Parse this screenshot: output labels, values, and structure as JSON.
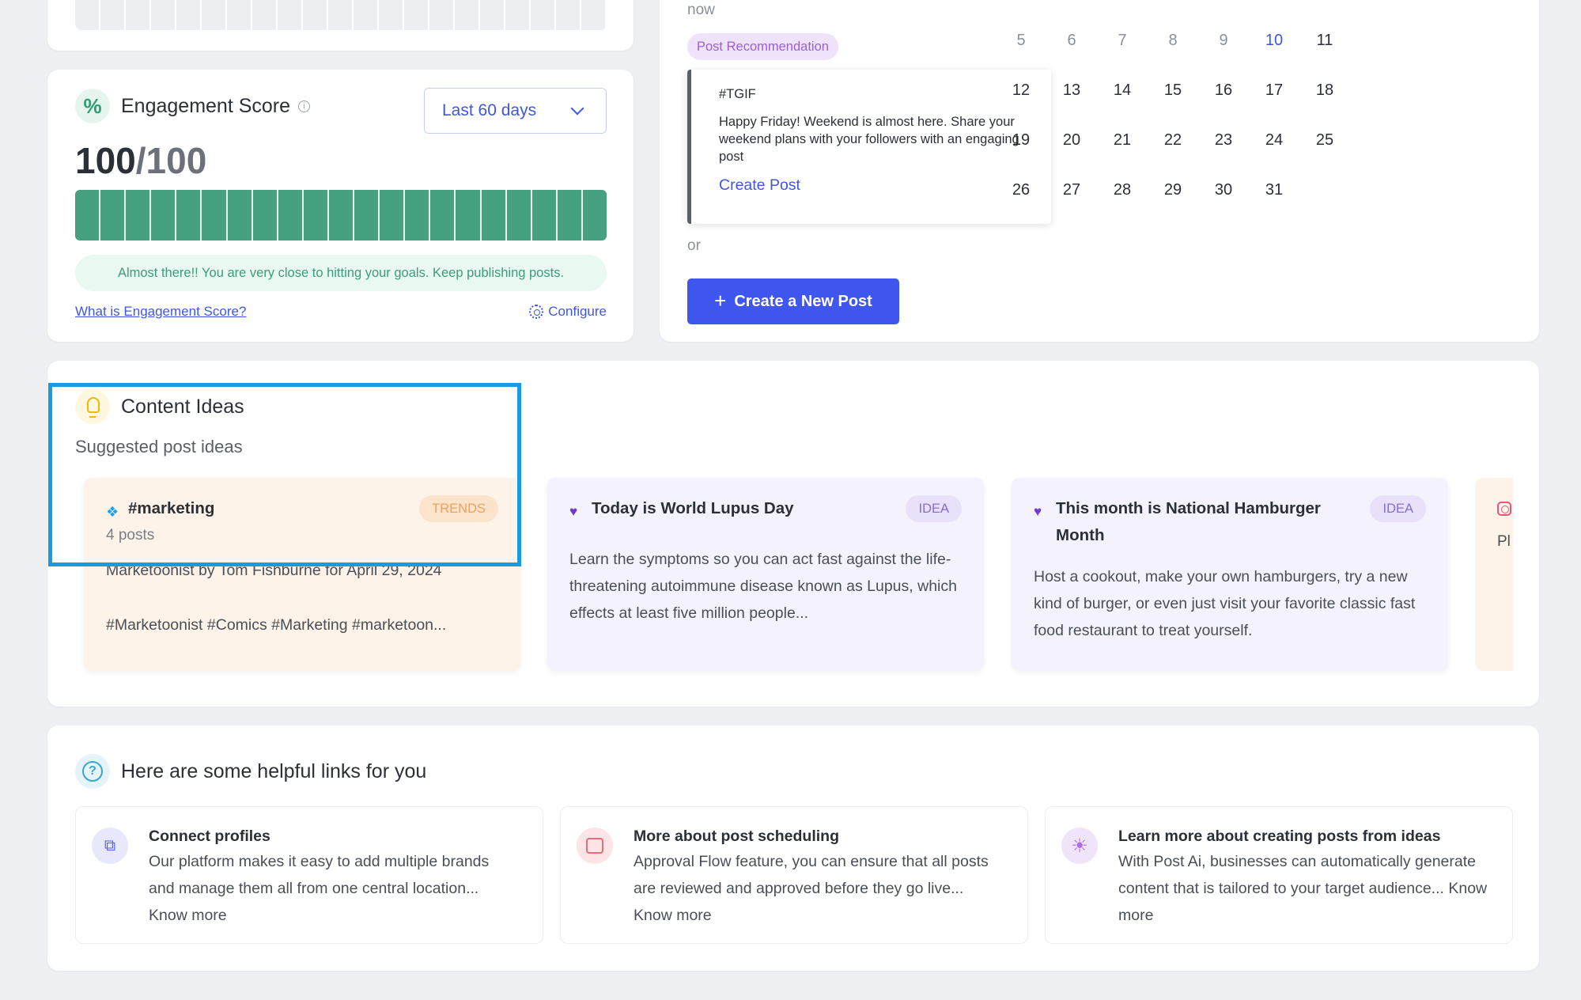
{
  "engagement": {
    "title": "Engagement Score",
    "range": "Last 60 days",
    "score": "100",
    "score_total": "/100",
    "progress_fraction": 1.0,
    "segments": 21,
    "hint": "Almost there!! You are very close to hitting your goals. Keep publishing posts.",
    "what_link": "What is Engagement Score?",
    "configure": "Configure"
  },
  "recommendation": {
    "now": "now",
    "pill": "Post Recommendation",
    "tag": "#TGIF",
    "body": "Happy Friday! Weekend is almost here. Share your weekend plans with your followers with an engaging post",
    "link": "Create Post",
    "or": "or",
    "button": "Create a New Post"
  },
  "calendar": {
    "rows": [
      [
        "5",
        "6",
        "7",
        "8",
        "9",
        "10",
        "11"
      ],
      [
        "12",
        "13",
        "14",
        "15",
        "16",
        "17",
        "18"
      ],
      [
        "19",
        "20",
        "21",
        "22",
        "23",
        "24",
        "25"
      ],
      [
        "26",
        "27",
        "28",
        "29",
        "30",
        "31",
        ""
      ]
    ],
    "today": "10"
  },
  "ideas": {
    "title": "Content Ideas",
    "subtitle": "Suggested post ideas",
    "cards": [
      {
        "icon": "twitter-icon",
        "title": "#marketing",
        "badge": "TRENDS",
        "posts": "4 posts",
        "text_1": "Marketoonist by Tom Fishburne for April 29, 2024",
        "text_2": "#Marketoonist #Comics #Marketing #marketoon..."
      },
      {
        "icon": "heart-icon",
        "title": "Today is World Lupus Day",
        "badge": "IDEA",
        "text": "Learn the symptoms so you can act fast against the life-threatening autoimmune disease known as Lupus, which effects at least five million people..."
      },
      {
        "icon": "heart-icon",
        "title": "This month is National Hamburger Month",
        "badge": "IDEA",
        "text": "Host a cookout, make your own hamburgers, try a new kind of burger, or even just visit your favorite classic fast food restaurant to treat yourself."
      }
    ],
    "cutoff_text": "Pl"
  },
  "links": {
    "title": "Here are some helpful links for you",
    "cards": [
      {
        "icon": "share-icon",
        "title": "Connect profiles",
        "body": "Our platform makes it easy to add multiple brands and manage them all from one central location... Know more"
      },
      {
        "icon": "calendar-icon",
        "title": "More about post scheduling",
        "body": "Approval Flow feature, you can ensure that all posts are reviewed and approved before they go live... Know more"
      },
      {
        "icon": "sun-icon",
        "title": "Learn more about creating posts from ideas",
        "body": "With Post Ai, businesses can automatically generate content that is tailored to your target audience... Know more"
      }
    ]
  },
  "colors": {
    "accent": "#3f57ef",
    "green": "#46a180",
    "highlight": "#1a9be0"
  }
}
